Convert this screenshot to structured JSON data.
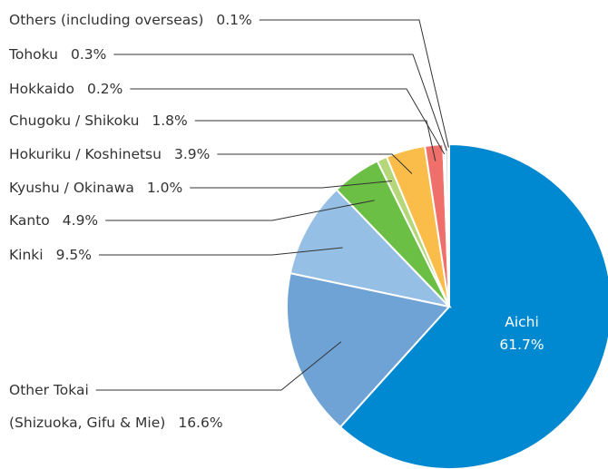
{
  "chart_data": {
    "type": "pie",
    "categories": [
      "Aichi",
      [
        "Other Tokai",
        "(Shizuoka, Gifu & Mie)"
      ],
      "Kinki",
      "Kanto",
      "Kyushu / Okinawa",
      "Hokuriku / Koshinetsu",
      "Chugoku / Shikoku",
      "Hokkaido",
      "Tohoku",
      "Others (including overseas)"
    ],
    "values": [
      61.7,
      16.6,
      9.5,
      4.9,
      1.0,
      3.9,
      1.8,
      0.2,
      0.3,
      0.1
    ],
    "value_labels": [
      "61.7%",
      "16.6%",
      "9.5%",
      "4.9%",
      "1.0%",
      "3.9%",
      "1.8%",
      "0.2%",
      "0.3%",
      "0.1%"
    ],
    "colors": [
      "#0089d0",
      "#6fa3d6",
      "#96bfe6",
      "#6cbf45",
      "#b5d77a",
      "#fbbd4a",
      "#ef6f6a",
      "#bfbfbf",
      "#d9d9d9",
      "#a6a6a6"
    ]
  }
}
